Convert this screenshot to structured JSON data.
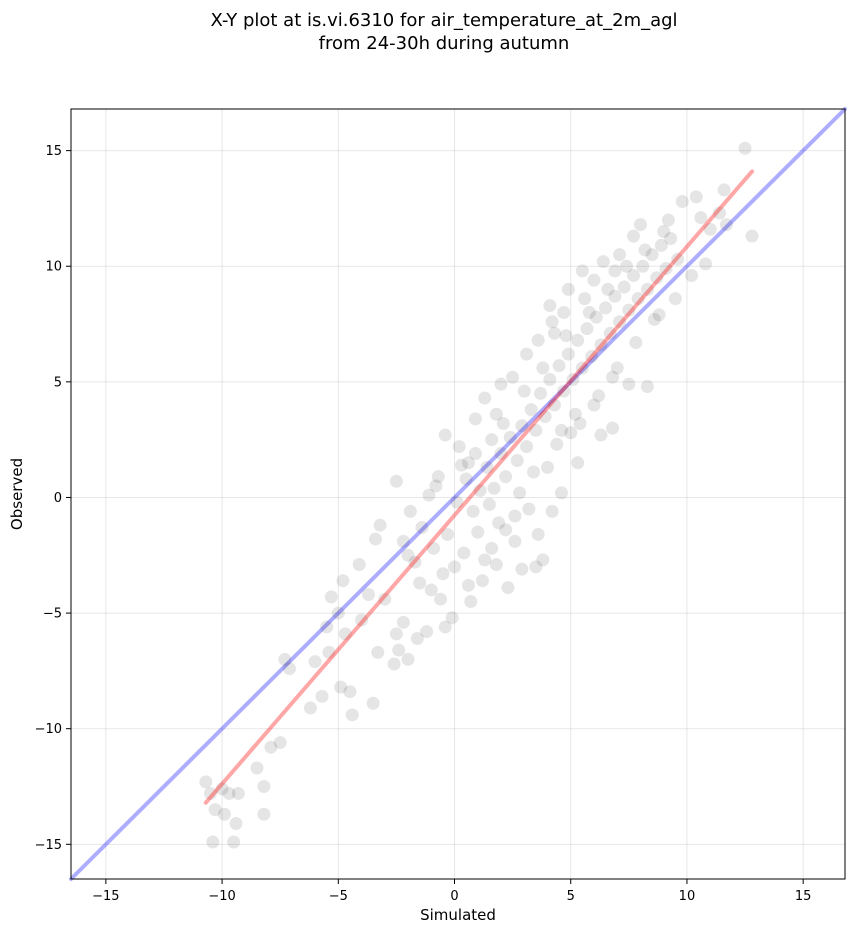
{
  "chart_data": {
    "type": "scatter",
    "title": "X-Y plot at is.vi.6310 for air_temperature_at_2m_agl",
    "subtitle": "from 24-30h during autumn",
    "xlabel": "Simulated",
    "ylabel": "Observed",
    "xlim": [
      -16.5,
      16.8
    ],
    "ylim": [
      -16.5,
      16.8
    ],
    "xticks": [
      -15,
      -10,
      -5,
      0,
      5,
      10,
      15
    ],
    "yticks": [
      -15,
      -10,
      -5,
      0,
      5,
      10,
      15
    ],
    "xtick_labels": [
      "−15",
      "−10",
      "−5",
      "0",
      "5",
      "10",
      "15"
    ],
    "ytick_labels": [
      "−15",
      "−10",
      "−5",
      "0",
      "5",
      "10",
      "15"
    ],
    "grid": true,
    "point_color": "#000000",
    "point_opacity": 0.1,
    "fit_line": {
      "x": [
        -10.7,
        12.8
      ],
      "y": [
        -13.2,
        14.1
      ],
      "color": "#ff0000",
      "opacity": 0.35
    },
    "identity_line": {
      "x": [
        -16.5,
        16.8
      ],
      "y": [
        -16.5,
        16.8
      ],
      "color": "#0000ff",
      "opacity": 0.32
    },
    "points": [
      [
        -10.4,
        -14.9
      ],
      [
        -9.5,
        -14.9
      ],
      [
        -10.3,
        -13.5
      ],
      [
        -9.9,
        -13.7
      ],
      [
        -9.4,
        -14.1
      ],
      [
        -8.2,
        -13.7
      ],
      [
        -10.5,
        -12.8
      ],
      [
        -10.0,
        -12.6
      ],
      [
        -9.7,
        -12.8
      ],
      [
        -9.3,
        -12.8
      ],
      [
        -8.2,
        -12.5
      ],
      [
        -8.5,
        -11.7
      ],
      [
        -10.7,
        -12.3
      ],
      [
        -7.9,
        -10.8
      ],
      [
        -7.5,
        -10.6
      ],
      [
        -7.3,
        -7.0
      ],
      [
        -7.1,
        -7.4
      ],
      [
        -6.2,
        -9.1
      ],
      [
        -5.7,
        -8.6
      ],
      [
        -6.0,
        -7.1
      ],
      [
        -5.4,
        -6.7
      ],
      [
        -4.9,
        -8.2
      ],
      [
        -4.5,
        -8.4
      ],
      [
        -4.4,
        -9.4
      ],
      [
        -3.5,
        -8.9
      ],
      [
        -2.6,
        -7.2
      ],
      [
        -2.4,
        -6.6
      ],
      [
        -2.0,
        -7.0
      ],
      [
        -3.3,
        -6.7
      ],
      [
        -5.5,
        -5.6
      ],
      [
        -5.0,
        -5.0
      ],
      [
        -4.7,
        -5.9
      ],
      [
        -4.0,
        -5.3
      ],
      [
        -5.3,
        -4.3
      ],
      [
        -4.8,
        -3.6
      ],
      [
        -4.1,
        -2.9
      ],
      [
        -3.7,
        -4.2
      ],
      [
        -3.0,
        -4.4
      ],
      [
        -2.2,
        -5.4
      ],
      [
        -2.5,
        -5.9
      ],
      [
        -1.6,
        -6.1
      ],
      [
        -1.2,
        -5.8
      ],
      [
        -0.4,
        -5.6
      ],
      [
        -0.1,
        -5.2
      ],
      [
        -3.4,
        -1.8
      ],
      [
        -3.2,
        -1.2
      ],
      [
        -2.5,
        0.7
      ],
      [
        -2.0,
        -2.5
      ],
      [
        -1.5,
        -3.7
      ],
      [
        -1.0,
        -4.0
      ],
      [
        -0.6,
        -4.4
      ],
      [
        -1.9,
        -0.6
      ],
      [
        -1.1,
        0.1
      ],
      [
        -0.7,
        0.9
      ],
      [
        -0.4,
        2.7
      ],
      [
        0.2,
        2.2
      ],
      [
        0.6,
        1.5
      ],
      [
        0.9,
        3.4
      ],
      [
        1.3,
        4.3
      ],
      [
        1.6,
        2.5
      ],
      [
        2.3,
        -3.9
      ],
      [
        1.2,
        -3.6
      ],
      [
        0.7,
        -4.5
      ],
      [
        1.8,
        -2.9
      ],
      [
        2.9,
        -3.1
      ],
      [
        3.5,
        -3.0
      ],
      [
        3.8,
        -2.7
      ],
      [
        2.6,
        -1.9
      ],
      [
        1.9,
        -1.1
      ],
      [
        3.2,
        -0.5
      ],
      [
        4.2,
        -0.6
      ],
      [
        4.6,
        0.2
      ],
      [
        5.3,
        1.5
      ],
      [
        5.0,
        2.8
      ],
      [
        6.3,
        2.7
      ],
      [
        6.8,
        3.0
      ],
      [
        7.5,
        4.9
      ],
      [
        8.3,
        4.8
      ],
      [
        4.2,
        7.6
      ],
      [
        4.1,
        8.3
      ],
      [
        4.9,
        9.0
      ],
      [
        5.5,
        9.8
      ],
      [
        6.4,
        10.2
      ],
      [
        7.1,
        10.5
      ],
      [
        7.7,
        11.3
      ],
      [
        8.0,
        11.8
      ],
      [
        9.2,
        12.0
      ],
      [
        9.8,
        12.8
      ],
      [
        10.4,
        13.0
      ],
      [
        10.6,
        12.1
      ],
      [
        11.0,
        11.6
      ],
      [
        11.4,
        12.3
      ],
      [
        11.7,
        11.8
      ],
      [
        11.6,
        13.3
      ],
      [
        12.5,
        15.1
      ],
      [
        12.8,
        11.3
      ],
      [
        10.2,
        9.6
      ],
      [
        10.8,
        10.1
      ],
      [
        9.5,
        8.6
      ],
      [
        8.8,
        7.9
      ],
      [
        -0.8,
        0.5
      ],
      [
        0.1,
        -0.2
      ],
      [
        0.5,
        0.8
      ],
      [
        0.8,
        -0.6
      ],
      [
        1.1,
        0.3
      ],
      [
        1.4,
        1.3
      ],
      [
        1.7,
        0.4
      ],
      [
        2.0,
        1.9
      ],
      [
        2.2,
        0.9
      ],
      [
        2.4,
        2.6
      ],
      [
        2.7,
        1.6
      ],
      [
        2.9,
        3.1
      ],
      [
        3.1,
        2.2
      ],
      [
        3.3,
        3.8
      ],
      [
        3.5,
        2.9
      ],
      [
        3.7,
        4.5
      ],
      [
        3.9,
        3.5
      ],
      [
        4.1,
        5.1
      ],
      [
        4.3,
        4.0
      ],
      [
        4.5,
        5.7
      ],
      [
        4.7,
        4.6
      ],
      [
        4.9,
        6.2
      ],
      [
        5.1,
        5.1
      ],
      [
        5.3,
        6.8
      ],
      [
        5.5,
        5.6
      ],
      [
        5.7,
        7.3
      ],
      [
        5.9,
        6.1
      ],
      [
        6.1,
        7.8
      ],
      [
        6.3,
        6.6
      ],
      [
        6.5,
        8.2
      ],
      [
        6.7,
        7.1
      ],
      [
        6.9,
        8.7
      ],
      [
        7.1,
        7.6
      ],
      [
        7.3,
        9.1
      ],
      [
        7.5,
        8.1
      ],
      [
        7.7,
        9.6
      ],
      [
        7.9,
        8.6
      ],
      [
        8.1,
        10.0
      ],
      [
        8.3,
        9.0
      ],
      [
        8.5,
        10.5
      ],
      [
        8.7,
        9.5
      ],
      [
        8.9,
        10.9
      ],
      [
        9.1,
        9.9
      ],
      [
        9.3,
        11.2
      ],
      [
        9.6,
        10.3
      ],
      [
        0.3,
        1.4
      ],
      [
        0.9,
        1.9
      ],
      [
        1.5,
        -0.3
      ],
      [
        2.1,
        3.2
      ],
      [
        2.6,
        -0.8
      ],
      [
        3.0,
        4.6
      ],
      [
        3.4,
        1.1
      ],
      [
        3.8,
        5.6
      ],
      [
        4.4,
        2.3
      ],
      [
        4.8,
        7.0
      ],
      [
        5.2,
        3.6
      ],
      [
        5.8,
        8.0
      ],
      [
        6.2,
        4.4
      ],
      [
        6.6,
        9.0
      ],
      [
        7.0,
        5.6
      ],
      [
        7.4,
        10.0
      ],
      [
        7.8,
        6.7
      ],
      [
        8.2,
        10.7
      ],
      [
        8.6,
        7.7
      ],
      [
        9.0,
        11.5
      ],
      [
        1.0,
        -1.5
      ],
      [
        1.6,
        -2.2
      ],
      [
        2.2,
        -1.4
      ],
      [
        2.8,
        0.2
      ],
      [
        3.6,
        -1.6
      ],
      [
        4.0,
        1.3
      ],
      [
        4.6,
        2.9
      ],
      [
        5.4,
        3.2
      ],
      [
        6.0,
        4.0
      ],
      [
        6.8,
        5.2
      ],
      [
        -1.4,
        -1.3
      ],
      [
        -0.9,
        -2.2
      ],
      [
        -0.3,
        -1.6
      ],
      [
        0.0,
        -3.0
      ],
      [
        0.4,
        -2.4
      ],
      [
        -1.7,
        -2.8
      ],
      [
        -2.2,
        -1.9
      ],
      [
        -0.5,
        -3.3
      ],
      [
        0.6,
        -3.8
      ],
      [
        1.3,
        -2.7
      ],
      [
        2.0,
        4.9
      ],
      [
        1.8,
        3.6
      ],
      [
        2.5,
        5.2
      ],
      [
        3.1,
        6.2
      ],
      [
        3.6,
        6.8
      ],
      [
        4.3,
        7.1
      ],
      [
        4.7,
        8.0
      ],
      [
        5.6,
        8.6
      ],
      [
        6.0,
        9.4
      ],
      [
        6.9,
        9.8
      ]
    ]
  }
}
